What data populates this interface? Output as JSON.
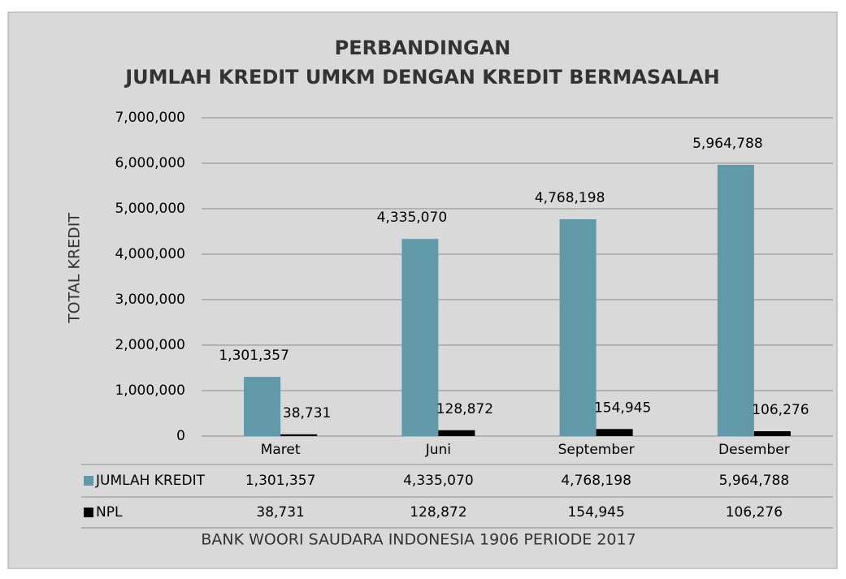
{
  "chart_data": {
    "type": "bar",
    "title": [
      "PERBANDINGAN",
      "JUMLAH KREDIT UMKM DENGAN KREDIT BERMASALAH"
    ],
    "y_label": "TOTAL KREDIT",
    "x_label": "BANK WOORI SAUDARA INDONESIA 1906 PERIODE 2017",
    "categories": [
      "Maret",
      "Juni",
      "September",
      "Desember"
    ],
    "series": [
      {
        "name": "JUMLAH KREDIT",
        "color": "#6199a9",
        "values": [
          1301357,
          4335070,
          4768198,
          5964788
        ],
        "value_labels": [
          "1,301,357",
          "4,335,070",
          "4,768,198",
          "5,964,788"
        ]
      },
      {
        "name": "NPL",
        "color": "#000000",
        "values": [
          38731,
          128872,
          154945,
          106276
        ],
        "value_labels": [
          "38,731",
          "128,872",
          "154,945",
          "106,276"
        ]
      }
    ],
    "ylim": [
      0,
      7000000
    ],
    "yticks": [
      0,
      {
        "value": 1000000,
        "label": "1,000,000"
      },
      {
        "value": 2000000,
        "label": "2,000,000"
      },
      {
        "value": 3000000,
        "label": "3,000,000"
      },
      {
        "value": 4000000,
        "label": "4,000,000"
      },
      {
        "value": 5000000,
        "label": "5,000,000"
      },
      {
        "value": 6000000,
        "label": "6,000,000"
      },
      {
        "value": 7000000,
        "label": "7,000,000"
      }
    ],
    "grid": true
  }
}
